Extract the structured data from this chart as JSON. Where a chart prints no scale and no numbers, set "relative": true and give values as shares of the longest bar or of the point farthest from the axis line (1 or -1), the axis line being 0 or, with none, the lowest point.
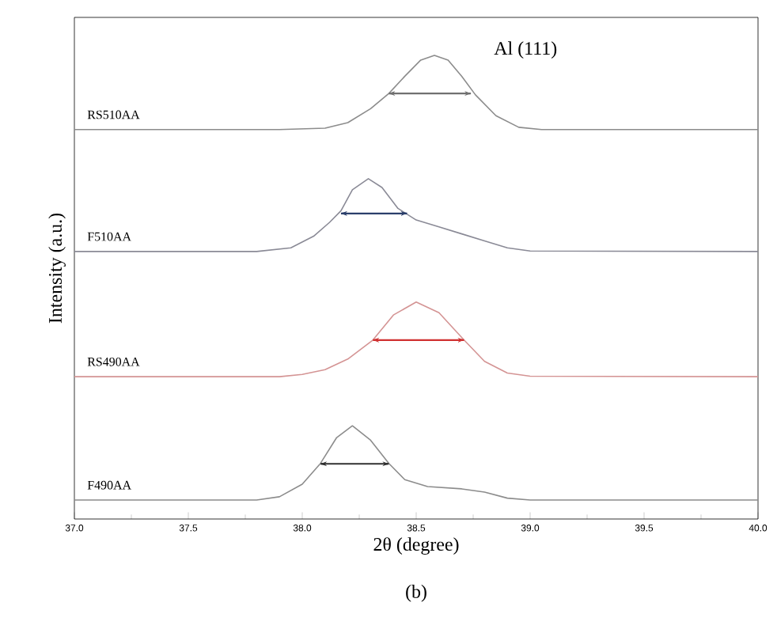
{
  "chart_data": {
    "type": "line",
    "relative": true,
    "xlabel": "2θ (degree)",
    "ylabel": "Intensity (a.u.)",
    "annotations": [
      "Al (111)",
      "(b)"
    ],
    "xlim": [
      37.0,
      40.0
    ],
    "xticks": [
      {
        "value": 37.0,
        "label": "37.0"
      },
      {
        "value": 37.5,
        "label": "37.5"
      },
      {
        "value": 38.0,
        "label": "38.0"
      },
      {
        "value": 38.5,
        "label": "38.5"
      },
      {
        "value": 39.0,
        "label": "39.0"
      },
      {
        "value": 39.5,
        "label": "39.5"
      },
      {
        "value": 40.0,
        "label": "40.0"
      }
    ],
    "grid": false,
    "marker": "none",
    "line_style": "solid",
    "series": [
      {
        "name": "RS510AA",
        "color": "#8c8c8c",
        "x": [
          37.0,
          37.9,
          38.1,
          38.2,
          38.3,
          38.38,
          38.45,
          38.52,
          38.58,
          38.64,
          38.7,
          38.76,
          38.85,
          38.95,
          39.05,
          40.0
        ],
        "values": [
          0.84,
          0.84,
          0.843,
          0.855,
          0.885,
          0.918,
          0.955,
          0.99,
          1.0,
          0.99,
          0.955,
          0.915,
          0.87,
          0.845,
          0.84,
          0.84
        ]
      },
      {
        "name": "F510AA",
        "color": "#8a8a96",
        "x": [
          37.0,
          37.8,
          37.95,
          38.05,
          38.12,
          38.17,
          38.22,
          38.29,
          38.35,
          38.42,
          38.5,
          38.6,
          38.7,
          38.8,
          38.9,
          39.0,
          40.0
        ],
        "values": [
          0.577,
          0.577,
          0.585,
          0.61,
          0.64,
          0.665,
          0.71,
          0.734,
          0.715,
          0.67,
          0.645,
          0.63,
          0.615,
          0.6,
          0.585,
          0.578,
          0.577
        ]
      },
      {
        "name": "RS490AA",
        "color": "#d49494",
        "x": [
          37.0,
          37.9,
          38.0,
          38.1,
          38.2,
          38.31,
          38.4,
          38.5,
          38.6,
          38.71,
          38.8,
          38.9,
          39.0,
          40.0
        ],
        "values": [
          0.307,
          0.307,
          0.312,
          0.322,
          0.345,
          0.386,
          0.44,
          0.468,
          0.445,
          0.386,
          0.34,
          0.315,
          0.308,
          0.307
        ]
      },
      {
        "name": "F490AA",
        "color": "#8c8c8c",
        "x": [
          37.0,
          37.8,
          37.9,
          38.0,
          38.08,
          38.15,
          38.22,
          38.3,
          38.38,
          38.45,
          38.55,
          38.7,
          38.8,
          38.9,
          39.0,
          40.0
        ],
        "values": [
          0.041,
          0.041,
          0.048,
          0.075,
          0.12,
          0.175,
          0.201,
          0.17,
          0.12,
          0.085,
          0.07,
          0.065,
          0.058,
          0.045,
          0.041,
          0.041
        ]
      },
      {
        "type": "line",
        "color": "#707070",
        "x": [
          38.38,
          38.74
        ],
        "values": [
          0.918,
          0.918
        ]
      },
      {
        "type": "line",
        "color": "#2b3f6b",
        "x": [
          38.17,
          38.46
        ],
        "values": [
          0.659,
          0.659
        ]
      },
      {
        "type": "line",
        "color": "#d03030",
        "x": [
          38.31,
          38.71
        ],
        "values": [
          0.386,
          0.386
        ]
      },
      {
        "type": "line",
        "color": "#303030",
        "x": [
          38.08,
          38.38
        ],
        "values": [
          0.119,
          0.119
        ]
      }
    ]
  }
}
